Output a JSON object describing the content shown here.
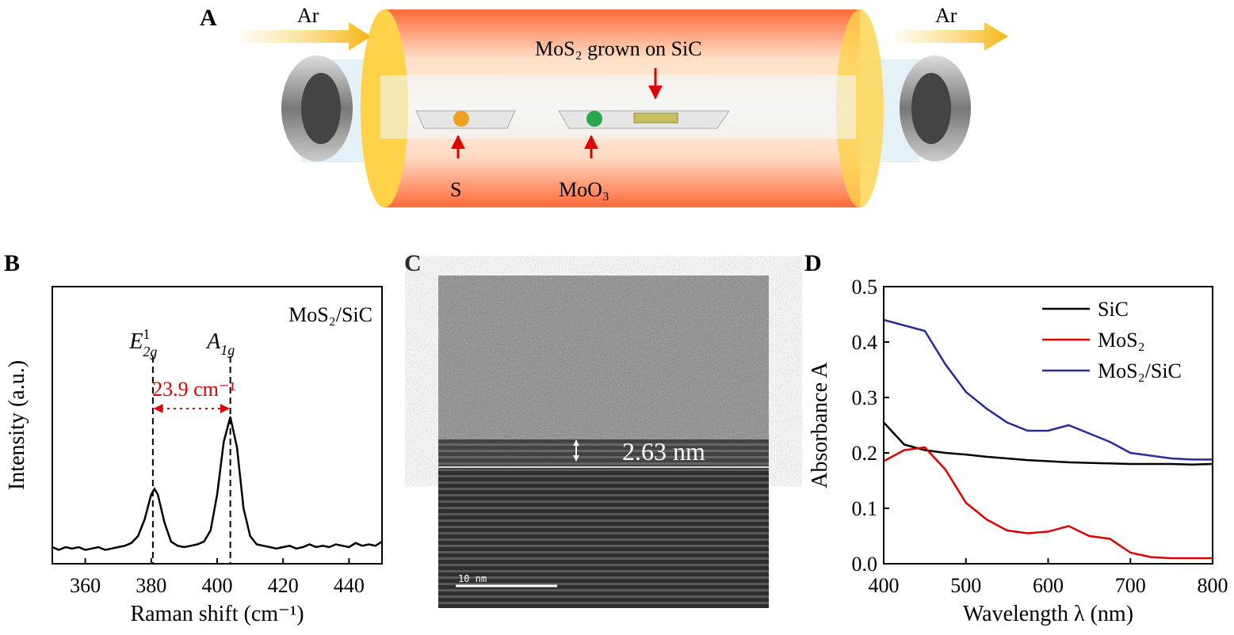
{
  "panel_a": {
    "label": "A",
    "gas_in": "Ar",
    "gas_out": "Ar",
    "substrate": "MoS₂ grown on SiC",
    "source_s": "S",
    "source_moo3": "MoO₃"
  },
  "panel_c": {
    "label": "C",
    "thickness": "2.63 nm",
    "scale_bar": "10 nm"
  },
  "chart_data": [
    {
      "type": "line",
      "panel_label": "B",
      "xlabel": "Raman shift (cm⁻¹)",
      "ylabel": "Intensity (a.u.)",
      "xlim": [
        350,
        450
      ],
      "xticks": [
        360,
        380,
        400,
        420,
        440
      ],
      "ylim": [
        0,
        1
      ],
      "x": [
        350,
        352,
        354,
        356,
        358,
        360,
        362,
        364,
        366,
        368,
        370,
        372,
        374,
        376,
        378,
        380,
        381,
        382,
        384,
        386,
        388,
        390,
        392,
        394,
        396,
        398,
        400,
        402,
        404,
        406,
        408,
        410,
        412,
        414,
        416,
        418,
        420,
        422,
        424,
        426,
        428,
        430,
        432,
        434,
        436,
        438,
        440,
        442,
        444,
        446,
        448,
        450
      ],
      "series": [
        {
          "color": "#000000",
          "values": [
            0.06,
            0.05,
            0.06,
            0.055,
            0.06,
            0.05,
            0.055,
            0.06,
            0.05,
            0.055,
            0.06,
            0.065,
            0.075,
            0.1,
            0.16,
            0.25,
            0.27,
            0.25,
            0.15,
            0.08,
            0.065,
            0.06,
            0.065,
            0.07,
            0.08,
            0.12,
            0.25,
            0.44,
            0.53,
            0.42,
            0.2,
            0.1,
            0.07,
            0.065,
            0.06,
            0.055,
            0.06,
            0.065,
            0.055,
            0.06,
            0.07,
            0.06,
            0.065,
            0.06,
            0.07,
            0.065,
            0.06,
            0.075,
            0.065,
            0.07,
            0.065,
            0.08
          ]
        }
      ],
      "annotation": "MoS₂/SiC",
      "peaks": [
        {
          "x": 380.5,
          "label": "E",
          "sup": "1",
          "sub": "2g"
        },
        {
          "x": 404,
          "label": "A",
          "sub": "1g"
        }
      ],
      "shift_label": "23.9 cm⁻¹",
      "shift_color": "#e00000"
    },
    {
      "type": "line",
      "panel_label": "D",
      "xlabel": "Wavelength λ (nm)",
      "ylabel": "Absorbance A",
      "xlim": [
        400,
        800
      ],
      "xticks": [
        400,
        500,
        600,
        700,
        800
      ],
      "ylim": [
        0,
        0.5
      ],
      "yticks": [
        {
          "value": 0,
          "label": "0.0"
        },
        0.1,
        0.2,
        0.3,
        0.4,
        0.5
      ],
      "x": [
        400,
        425,
        450,
        475,
        500,
        525,
        550,
        575,
        600,
        625,
        650,
        675,
        700,
        725,
        750,
        775,
        800
      ],
      "legend": "upper right",
      "series": [
        {
          "name": "SiC",
          "color": "#000000",
          "values": [
            0.255,
            0.215,
            0.205,
            0.2,
            0.197,
            0.193,
            0.19,
            0.187,
            0.185,
            0.183,
            0.182,
            0.181,
            0.18,
            0.18,
            0.18,
            0.179,
            0.18
          ]
        },
        {
          "name": "MoS₂",
          "color": "#e00000",
          "values": [
            0.185,
            0.205,
            0.21,
            0.17,
            0.11,
            0.08,
            0.06,
            0.055,
            0.058,
            0.068,
            0.05,
            0.045,
            0.02,
            0.012,
            0.01,
            0.01,
            0.01
          ]
        },
        {
          "name": "MoS₂/SiC",
          "color": "#2a2a9a",
          "values": [
            0.44,
            0.43,
            0.42,
            0.36,
            0.31,
            0.28,
            0.255,
            0.24,
            0.24,
            0.25,
            0.235,
            0.22,
            0.2,
            0.195,
            0.19,
            0.188,
            0.188
          ]
        }
      ]
    }
  ]
}
